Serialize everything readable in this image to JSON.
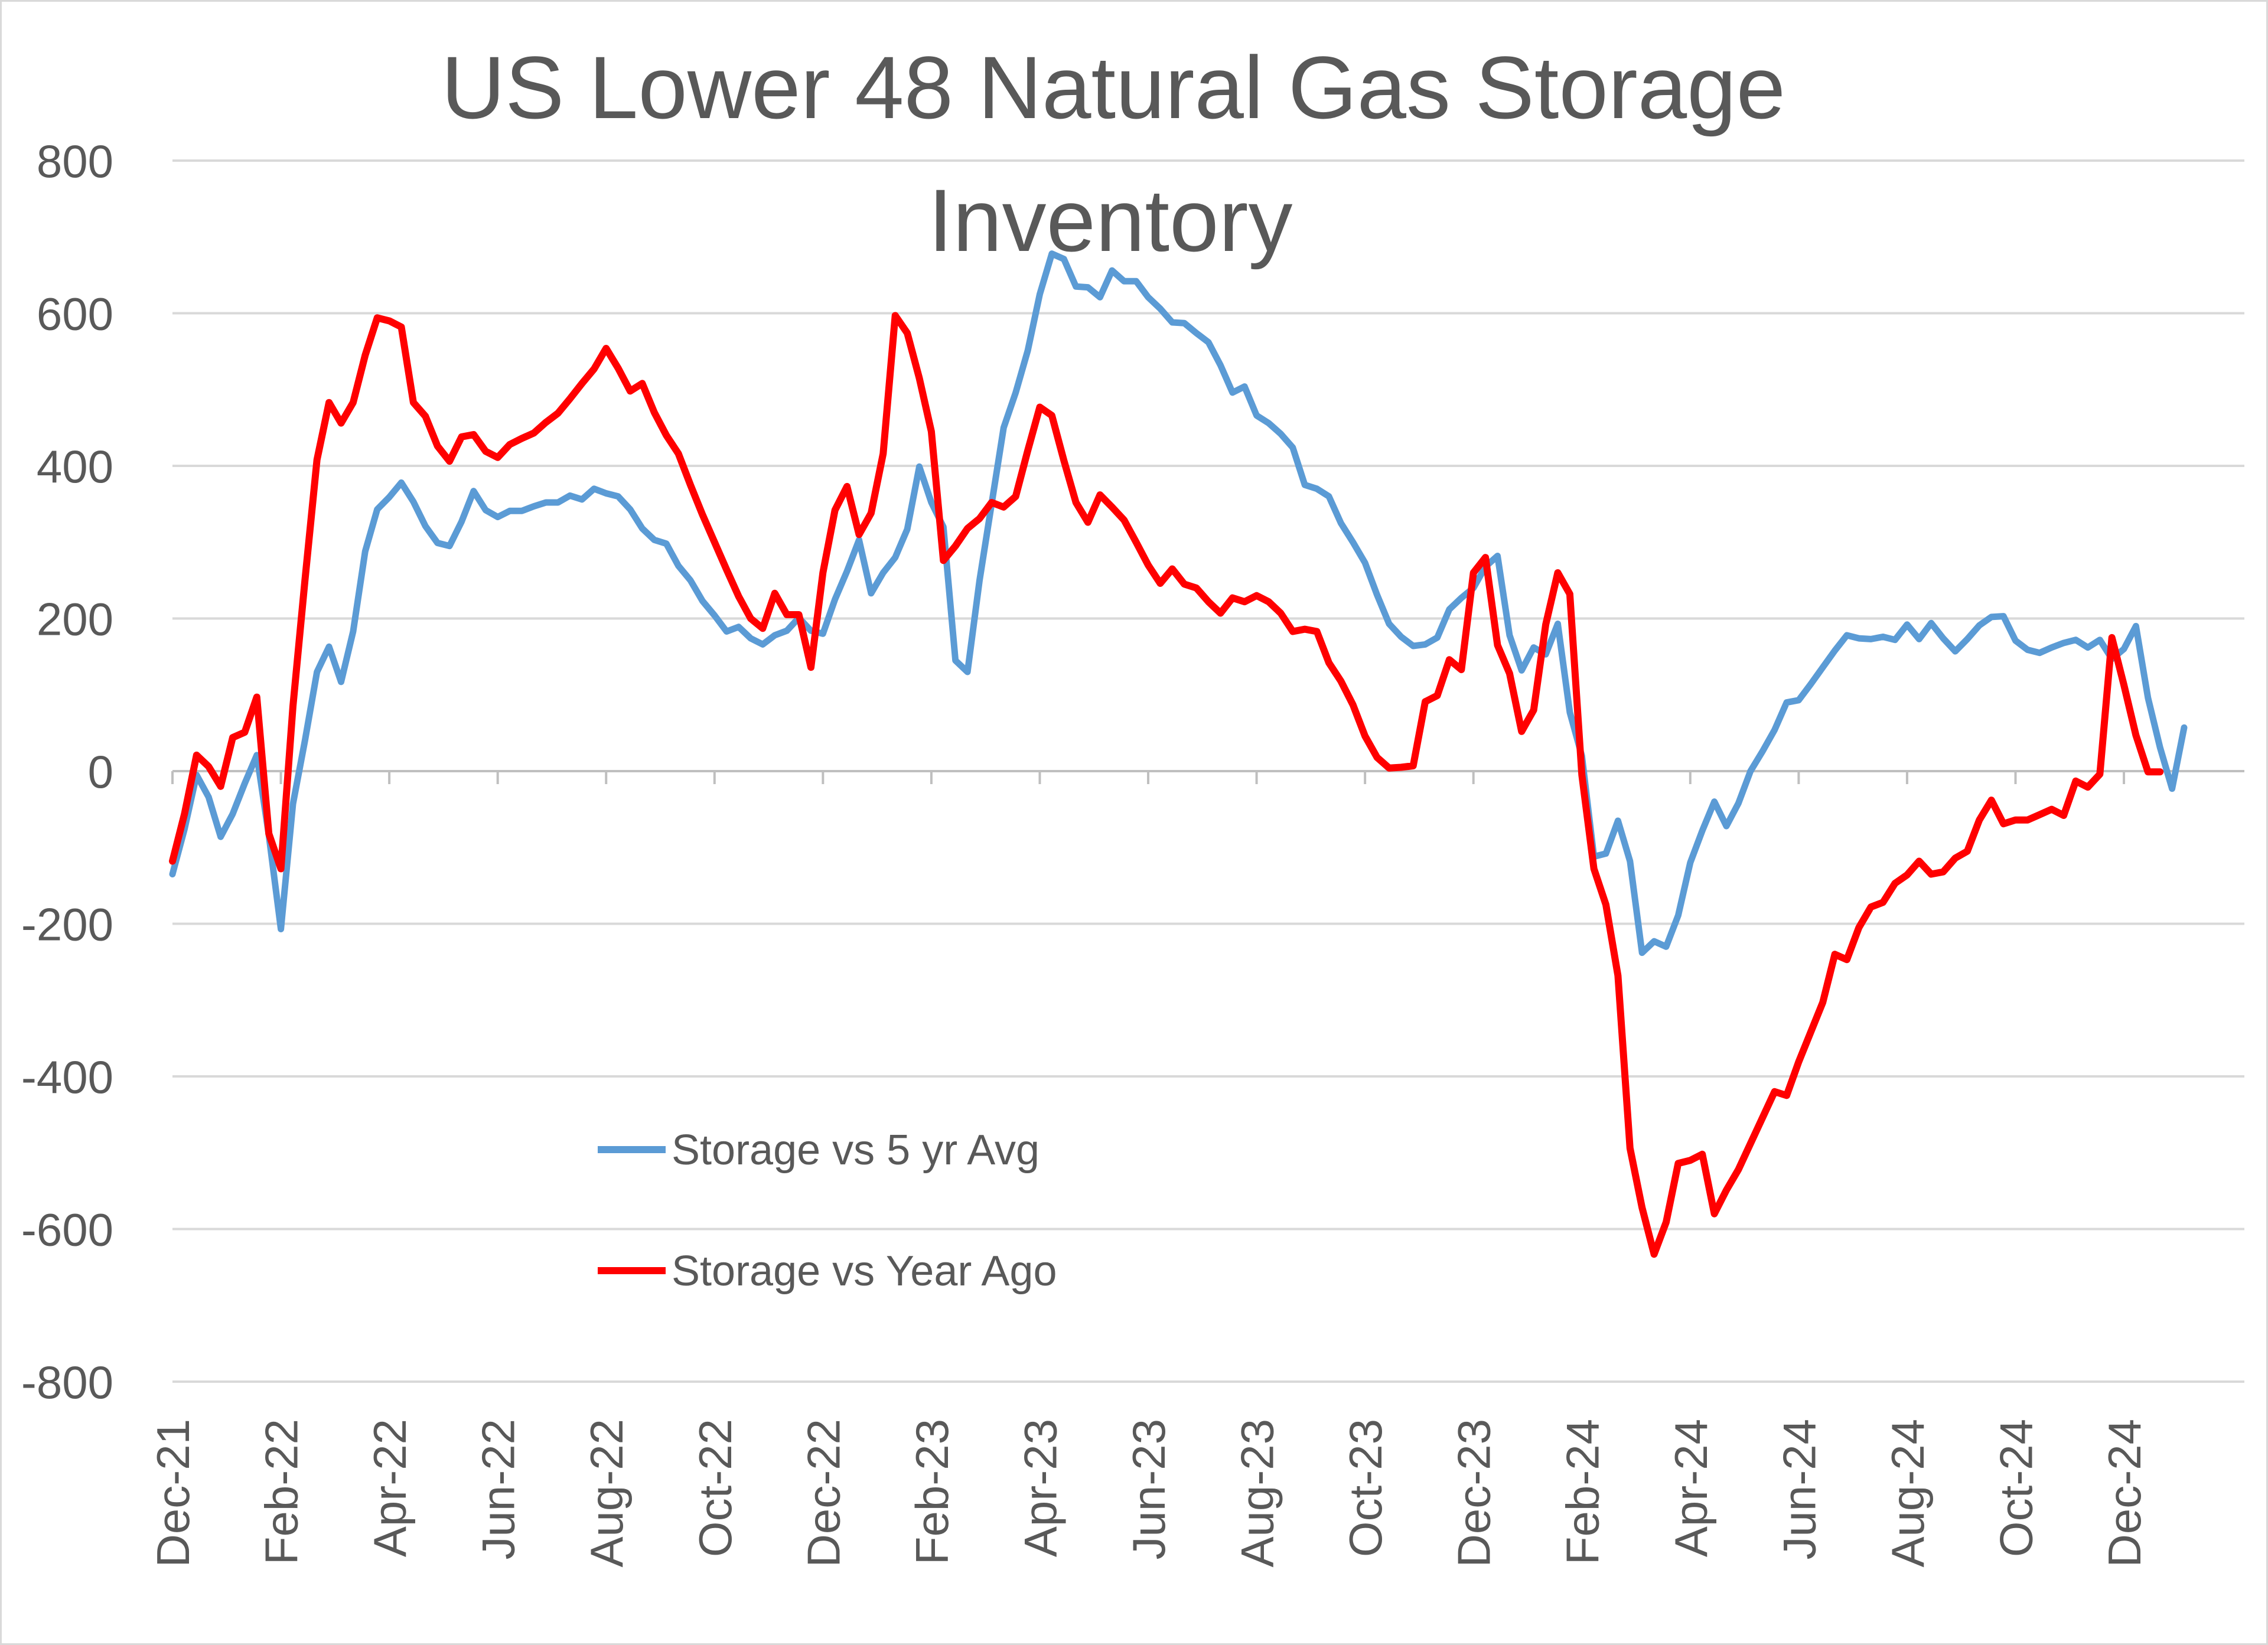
{
  "chart_data": {
    "type": "line",
    "title_line1": "US Lower 48 Natural Gas Storage",
    "title_line2": "Inventory",
    "xlabel": "",
    "ylabel": "",
    "ylim": [
      -800,
      800
    ],
    "yticks": [
      800,
      600,
      400,
      200,
      0,
      -200,
      -400,
      -600,
      -800
    ],
    "ytick_labels": [
      "800",
      "600",
      "400",
      "200",
      "0",
      "-200",
      "-400",
      "-600",
      "-800"
    ],
    "xticks": [
      0,
      9,
      18,
      27,
      36,
      45,
      54,
      63,
      72,
      81,
      90,
      99,
      108,
      117,
      126,
      135,
      144,
      153,
      162
    ],
    "xtick_labels": [
      "Dec-21",
      "Feb-22",
      "Apr-22",
      "Jun-22",
      "Aug-22",
      "Oct-22",
      "Dec-22",
      "Feb-23",
      "Apr-23",
      "Jun-23",
      "Aug-23",
      "Oct-23",
      "Dec-23",
      "Feb-24",
      "Apr-24",
      "Jun-24",
      "Aug-24",
      "Oct-24",
      "Dec-24"
    ],
    "x_count": 173,
    "grid": true,
    "legend_position": "center-left",
    "series": [
      {
        "name": "Storage vs 5 yr Avg",
        "color": "#5b9bd5",
        "values": [
          -135,
          -76,
          -5,
          -34,
          -86,
          -56,
          -16,
          21,
          -84,
          -207,
          -43,
          40,
          130,
          163,
          117,
          183,
          288,
          343,
          359,
          378,
          353,
          321,
          299,
          295,
          327,
          367,
          342,
          333,
          341,
          341,
          347,
          352,
          352,
          361,
          356,
          370,
          364,
          360,
          343,
          318,
          303,
          298,
          269,
          250,
          223,
          204,
          183,
          189,
          174,
          166,
          178,
          184,
          201,
          184,
          180,
          225,
          262,
          303,
          233,
          260,
          280,
          317,
          399,
          352,
          320,
          145,
          130,
          250,
          350,
          450,
          496,
          551,
          625,
          678,
          671,
          635,
          634,
          621,
          656,
          642,
          642,
          621,
          606,
          588,
          587,
          574,
          562,
          532,
          496,
          504,
          466,
          456,
          442,
          424,
          375,
          370,
          360,
          325,
          300,
          273,
          231,
          193,
          176,
          164,
          166,
          175,
          212,
          227,
          240,
          268,
          282,
          178,
          132,
          162,
          153,
          193,
          77,
          20,
          -112,
          -108,
          -65,
          -118,
          -238,
          -223,
          -230,
          -189,
          -120,
          -78,
          -40,
          -72,
          -42,
          0,
          26,
          54,
          90,
          93,
          114,
          136,
          158,
          178,
          174,
          173,
          176,
          172,
          192,
          173,
          194,
          174,
          157,
          173,
          191,
          202,
          203,
          171,
          159,
          155,
          162,
          168,
          172,
          162,
          172,
          147,
          160,
          190,
          96,
          31,
          -23,
          57
        ]
      },
      {
        "name": "Storage vs Year Ago",
        "color": "#ff0000",
        "values": [
          -118,
          -56,
          21,
          6,
          -20,
          44,
          51,
          97,
          -82,
          -128,
          85,
          250,
          408,
          483,
          456,
          483,
          545,
          594,
          590,
          582,
          483,
          465,
          426,
          406,
          438,
          441,
          419,
          411,
          428,
          436,
          443,
          457,
          469,
          488,
          508,
          527,
          554,
          528,
          498,
          508,
          470,
          440,
          416,
          375,
          336,
          300,
          264,
          229,
          200,
          187,
          233,
          205,
          205,
          136,
          260,
          342,
          373,
          310,
          338,
          416,
          597,
          574,
          515,
          445,
          276,
          295,
          318,
          331,
          352,
          346,
          360,
          420,
          477,
          466,
          407,
          352,
          326,
          362,
          346,
          329,
          300,
          270,
          246,
          265,
          245,
          240,
          222,
          207,
          227,
          222,
          230,
          222,
          207,
          183,
          186,
          183,
          142,
          118,
          87,
          46,
          18,
          4,
          5,
          7,
          91,
          99,
          146,
          133,
          260,
          280,
          165,
          128,
          52,
          80,
          192,
          260,
          232,
          -5,
          -128,
          -175,
          -268,
          -494,
          -572,
          -633,
          -591,
          -514,
          -510,
          -502,
          -580,
          -549,
          -522,
          -488,
          -454,
          -420,
          -425,
          -381,
          -342,
          -303,
          -240,
          -247,
          -205,
          -178,
          -172,
          -147,
          -136,
          -118,
          -135,
          -132,
          -114,
          -105,
          -64,
          -38,
          -69,
          -64,
          -64,
          -57,
          -50,
          -58,
          -13,
          -21,
          -4,
          175,
          113,
          47,
          -1,
          -1
        ]
      }
    ]
  }
}
